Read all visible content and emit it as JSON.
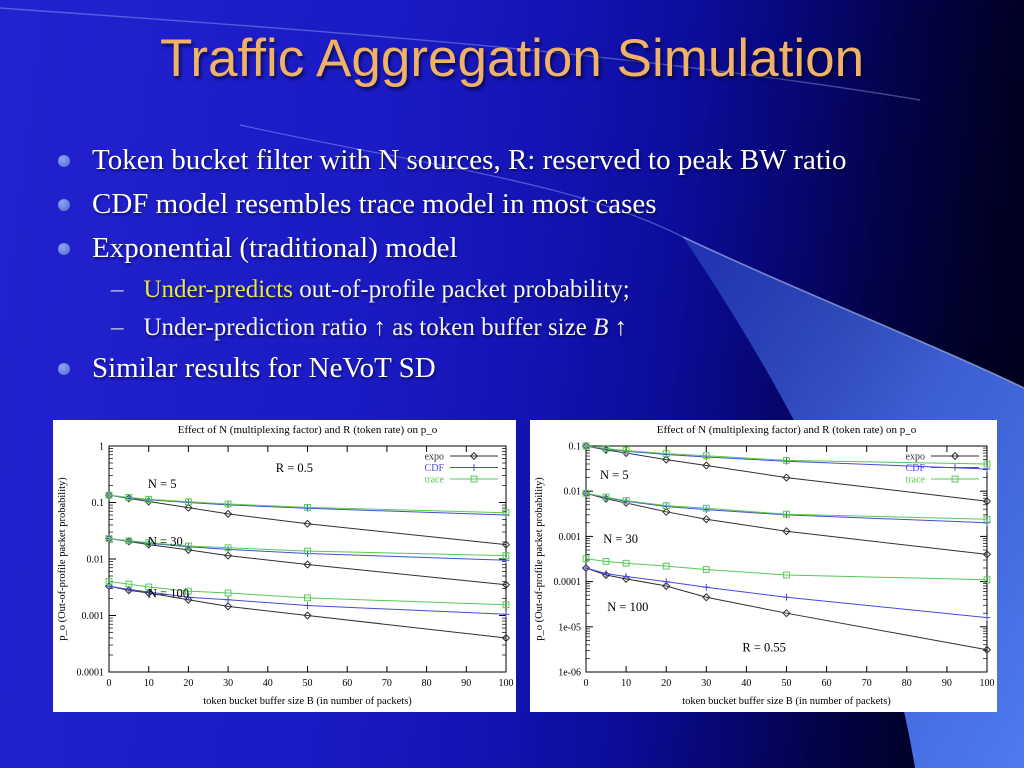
{
  "slide": {
    "title": "Traffic Aggregation Simulation",
    "sub_marker": "–",
    "colors": {
      "title": "#f0b266",
      "highlight_yellow": "#e9e54d",
      "body_text": "#ffffff",
      "bullet_dot": "#5f7ade",
      "background_bright_blue": "#2020cc",
      "background_dark_navy": "#000018",
      "swoosh_light_blue": "#4e7bf0"
    },
    "bullets": [
      {
        "level": 1,
        "segments": [
          {
            "t": "Token bucket filter with N sources, R: reserved to peak BW ratio",
            "style": ""
          }
        ]
      },
      {
        "level": 1,
        "segments": [
          {
            "t": "CDF model resembles trace model in most cases",
            "style": ""
          }
        ]
      },
      {
        "level": 1,
        "segments": [
          {
            "t": "Exponential (traditional) model",
            "style": ""
          }
        ]
      },
      {
        "level": 2,
        "segments": [
          {
            "t": "Under-predicts",
            "style": "highlight"
          },
          {
            "t": " out-of-profile packet probability;",
            "style": ""
          }
        ]
      },
      {
        "level": 2,
        "segments": [
          {
            "t": "Under-prediction ratio ",
            "style": ""
          },
          {
            "t": "↑",
            "style": ""
          },
          {
            "t": " as token buffer size ",
            "style": ""
          },
          {
            "t": "B",
            "style": "italic"
          },
          {
            "t": " ↑",
            "style": ""
          }
        ]
      },
      {
        "level": 1,
        "segments": [
          {
            "t": "Similar results for NeVoT SD",
            "style": ""
          }
        ]
      }
    ]
  },
  "chart_data": [
    {
      "type": "line",
      "title": "Effect of N (multiplexing factor) and R (token rate) on p_o",
      "xlabel": "token bucket buffer size B (in number of packets)",
      "ylabel": "p_o (Out-of-profile packet probability)",
      "yscale": "log",
      "grid": false,
      "legend_position": "top-right-inside",
      "x": [
        0,
        5,
        10,
        20,
        30,
        50,
        100
      ],
      "xlim": [
        0,
        100
      ],
      "xtick_step": 10,
      "ylim": [
        0.0001,
        1
      ],
      "ytick_labels": [
        "1",
        "0.1",
        "0.01",
        "0.001",
        "0.0001"
      ],
      "series_styles": {
        "expo": {
          "color": "#303030",
          "marker": "diamond"
        },
        "CDF": {
          "color": "#4949d8",
          "marker": "plus"
        },
        "trace": {
          "color": "#55cb55",
          "marker": "square"
        }
      },
      "annotations": [
        {
          "text": "R = 0.5",
          "ax": 0.42,
          "ay": 0.115
        },
        {
          "text": "N = 5",
          "ax": 0.098,
          "ay": 0.185
        },
        {
          "text": "N = 30",
          "ax": 0.098,
          "ay": 0.44
        },
        {
          "text": "N = 100",
          "ax": 0.098,
          "ay": 0.67
        }
      ],
      "series": [
        {
          "group": "N = 5",
          "name": "expo",
          "values": [
            0.135,
            0.118,
            0.104,
            0.081,
            0.063,
            0.042,
            0.018
          ]
        },
        {
          "group": "N = 5",
          "name": "CDF",
          "values": [
            0.135,
            0.121,
            0.112,
            0.1,
            0.091,
            0.079,
            0.06
          ]
        },
        {
          "group": "N = 5",
          "name": "trace",
          "values": [
            0.135,
            0.123,
            0.114,
            0.103,
            0.094,
            0.082,
            0.066
          ]
        },
        {
          "group": "N = 30",
          "name": "expo",
          "values": [
            0.023,
            0.0205,
            0.018,
            0.0145,
            0.0115,
            0.008,
            0.0035
          ]
        },
        {
          "group": "N = 30",
          "name": "CDF",
          "values": [
            0.023,
            0.021,
            0.019,
            0.0165,
            0.0148,
            0.0125,
            0.0095
          ]
        },
        {
          "group": "N = 30",
          "name": "trace",
          "values": [
            0.023,
            0.021,
            0.0195,
            0.017,
            0.0158,
            0.0138,
            0.0115
          ]
        },
        {
          "group": "N = 100",
          "name": "expo",
          "values": [
            0.0033,
            0.0028,
            0.0025,
            0.0019,
            0.00145,
            0.001,
            0.0004
          ]
        },
        {
          "group": "N = 100",
          "name": "CDF",
          "values": [
            0.0033,
            0.0029,
            0.0026,
            0.0021,
            0.0019,
            0.0015,
            0.00105
          ]
        },
        {
          "group": "N = 100",
          "name": "trace",
          "values": [
            0.004,
            0.0036,
            0.0032,
            0.0027,
            0.0025,
            0.00205,
            0.00155
          ]
        }
      ]
    },
    {
      "type": "line",
      "title": "Effect of N (multiplexing factor) and R (token rate) on p_o",
      "xlabel": "token bucket buffer size B (in number of packets)",
      "ylabel": "p_o (Out-of-profile packet probability)",
      "yscale": "log",
      "grid": false,
      "legend_position": "top-right-inside",
      "x": [
        0,
        5,
        10,
        20,
        30,
        50,
        100
      ],
      "xlim": [
        0,
        100
      ],
      "xtick_step": 10,
      "ylim": [
        1e-06,
        0.1
      ],
      "ytick_labels": [
        "0.1",
        "0.01",
        "0.001",
        "0.0001",
        "1e-05",
        "1e-06"
      ],
      "series_styles": {
        "expo": {
          "color": "#303030",
          "marker": "diamond"
        },
        "CDF": {
          "color": "#4949d8",
          "marker": "plus"
        },
        "trace": {
          "color": "#55cb55",
          "marker": "square"
        }
      },
      "annotations": [
        {
          "text": "N = 5",
          "ax": 0.035,
          "ay": 0.145
        },
        {
          "text": "N = 30",
          "ax": 0.043,
          "ay": 0.43
        },
        {
          "text": "N = 100",
          "ax": 0.053,
          "ay": 0.73
        },
        {
          "text": "R = 0.55",
          "ax": 0.39,
          "ay": 0.91
        }
      ],
      "series": [
        {
          "group": "N = 5",
          "name": "expo",
          "values": [
            0.1,
            0.082,
            0.07,
            0.05,
            0.037,
            0.02,
            0.006
          ]
        },
        {
          "group": "N = 5",
          "name": "CDF",
          "values": [
            0.1,
            0.086,
            0.077,
            0.065,
            0.057,
            0.046,
            0.031
          ]
        },
        {
          "group": "N = 5",
          "name": "trace",
          "values": [
            0.1,
            0.088,
            0.079,
            0.068,
            0.061,
            0.048,
            0.04
          ]
        },
        {
          "group": "N = 30",
          "name": "expo",
          "values": [
            0.009,
            0.0068,
            0.0055,
            0.0035,
            0.0024,
            0.0013,
            0.0004
          ]
        },
        {
          "group": "N = 30",
          "name": "CDF",
          "values": [
            0.009,
            0.0072,
            0.006,
            0.0046,
            0.0039,
            0.003,
            0.002
          ]
        },
        {
          "group": "N = 30",
          "name": "trace",
          "values": [
            0.009,
            0.0074,
            0.0062,
            0.0048,
            0.0042,
            0.0031,
            0.0024
          ]
        },
        {
          "group": "N = 100",
          "name": "expo",
          "values": [
            0.0002,
            0.00014,
            0.000115,
            8e-05,
            4.5e-05,
            2e-05,
            3.1e-06
          ]
        },
        {
          "group": "N = 100",
          "name": "CDF",
          "values": [
            0.0002,
            0.00015,
            0.00013,
            0.0001,
            7.5e-05,
            4.5e-05,
            1.6e-05
          ]
        },
        {
          "group": "N = 100",
          "name": "trace",
          "values": [
            0.00032,
            0.00028,
            0.000255,
            0.00022,
            0.000185,
            0.00014,
            0.00011
          ]
        }
      ]
    }
  ]
}
